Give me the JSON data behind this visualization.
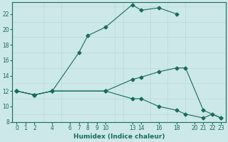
{
  "xlabel": "Humidex (Indice chaleur)",
  "ylabel": "",
  "bg_color": "#cce8e8",
  "line_color": "#1a6b5a",
  "grid_color": "#b8d4d4",
  "xlim": [
    -0.5,
    23.5
  ],
  "ylim": [
    8,
    23.5
  ],
  "xticks": [
    0,
    1,
    2,
    4,
    6,
    7,
    8,
    9,
    10,
    13,
    14,
    16,
    18,
    20,
    21,
    22,
    23
  ],
  "yticks": [
    8,
    10,
    12,
    14,
    16,
    18,
    20,
    22
  ],
  "line1_x": [
    0,
    2,
    4,
    7,
    8,
    10,
    13,
    14,
    16,
    18
  ],
  "line1_y": [
    12,
    11.5,
    12,
    17,
    19.2,
    20.3,
    23.2,
    22.5,
    22.8,
    22
  ],
  "line2_x": [
    0,
    2,
    4,
    10,
    13,
    14,
    16,
    18,
    19,
    21,
    23
  ],
  "line2_y": [
    12,
    11.5,
    12,
    12,
    13.5,
    13.8,
    14.5,
    15,
    15,
    9.5,
    8.5
  ],
  "line3_x": [
    0,
    2,
    4,
    10,
    13,
    14,
    16,
    18,
    19,
    21,
    22,
    23
  ],
  "line3_y": [
    12,
    11.5,
    12,
    12,
    11,
    11,
    10,
    9.5,
    9,
    8.5,
    9,
    8.5
  ]
}
